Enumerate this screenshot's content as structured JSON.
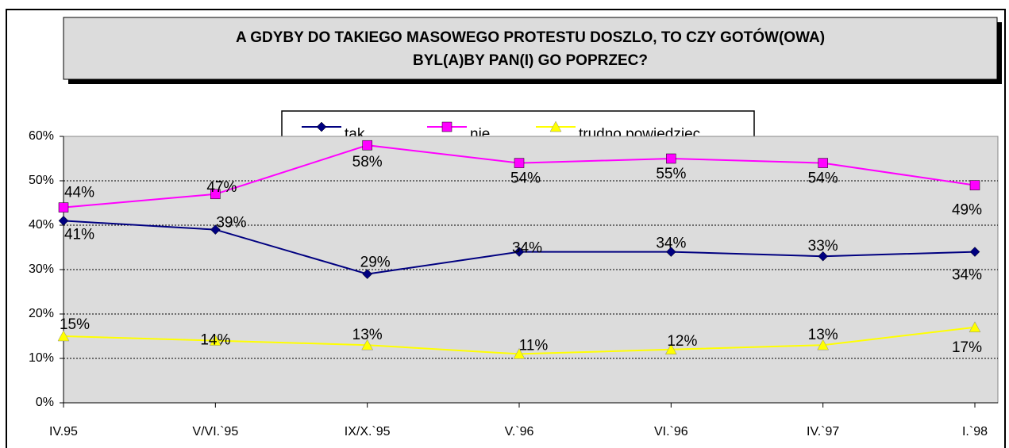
{
  "chart_data": {
    "type": "line",
    "title": [
      "A GDYBY DO TAKIEGO MASOWEGO PROTESTU DOSZLO, TO CZY GOTÓW(OWA)",
      "BYL(A)BY PAN(I) GO POPRZEC?"
    ],
    "categories": [
      "IV.95",
      "V/VI.`95",
      "IX/X.`95",
      "V.`96",
      "VI.`96",
      "IV.`97",
      "I.`98"
    ],
    "series": [
      {
        "name": "tak",
        "color": "#000080",
        "marker": "diamond",
        "values": [
          41,
          39,
          29,
          34,
          34,
          33,
          34
        ],
        "value_labels": [
          "41%",
          "39%",
          "29%",
          "34%",
          "34%",
          "33%",
          "34%"
        ]
      },
      {
        "name": "nie",
        "color": "#ff00ff",
        "marker": "square",
        "values": [
          44,
          47,
          58,
          54,
          55,
          54,
          49
        ],
        "value_labels": [
          "44%",
          "47%",
          "58%",
          "54%",
          "55%",
          "54%",
          "49%"
        ]
      },
      {
        "name": "trudno powiedziec",
        "color": "#ffff00",
        "marker": "triangle",
        "values": [
          15,
          14,
          13,
          11,
          12,
          13,
          17
        ],
        "value_labels": [
          "15%",
          "14%",
          "13%",
          "11%",
          "12%",
          "13%",
          "17%"
        ]
      }
    ],
    "ylim": [
      0,
      60
    ],
    "yticks": [
      {
        "value": 0,
        "label": "0%"
      },
      {
        "value": 10,
        "label": "10%"
      },
      {
        "value": 20,
        "label": "20%"
      },
      {
        "value": 30,
        "label": "30%"
      },
      {
        "value": 40,
        "label": "40%"
      },
      {
        "value": 50,
        "label": "50%"
      },
      {
        "value": 60,
        "label": "60%"
      }
    ],
    "grid": true
  }
}
